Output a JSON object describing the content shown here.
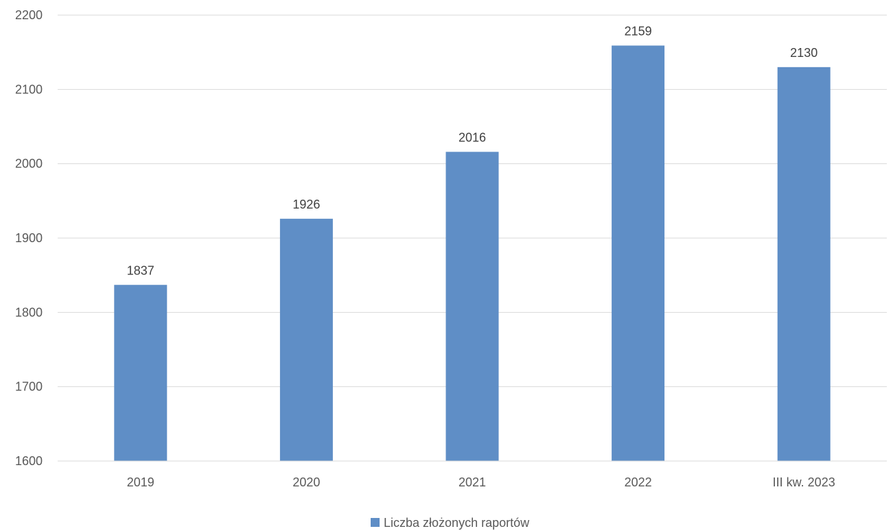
{
  "chart_data": {
    "type": "bar",
    "categories": [
      "2019",
      "2020",
      "2021",
      "2022",
      "III kw. 2023"
    ],
    "series": [
      {
        "name": "Liczba złożonych raportów",
        "values": [
          1837,
          1926,
          2016,
          2159,
          2130
        ],
        "color": "#5f8ec6"
      }
    ],
    "ylim": [
      1600,
      2200
    ],
    "yticks": [
      1600,
      1700,
      1800,
      1900,
      2000,
      2100,
      2200
    ],
    "grid": true,
    "data_labels": true,
    "legend_position": "bottom"
  }
}
